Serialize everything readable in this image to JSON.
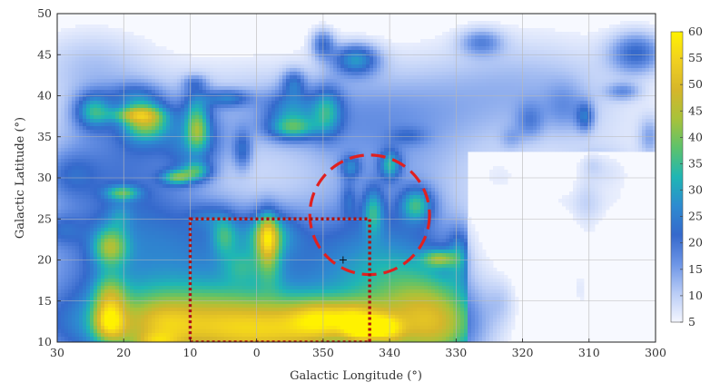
{
  "chart_data": {
    "type": "heatmap",
    "xlabel": "Galactic Longitude (°)",
    "ylabel": "Galactic Latitude (°)",
    "x_ticks": [
      30,
      20,
      10,
      0,
      350,
      340,
      330,
      320,
      310,
      300
    ],
    "y_ticks": [
      10,
      15,
      20,
      25,
      30,
      35,
      40,
      45,
      50
    ],
    "xlim": [
      30,
      300
    ],
    "ylim": [
      10,
      50
    ],
    "grid": true,
    "colorbar": {
      "ticks": [
        5,
        10,
        15,
        20,
        25,
        30,
        35,
        40,
        45,
        50,
        55,
        60
      ],
      "range": [
        5,
        60
      ],
      "colors": [
        "#f4f6ff",
        "#b9ccf6",
        "#6d95e6",
        "#3569cc",
        "#2d8bd0",
        "#1fb6b4",
        "#5cc26c",
        "#a8c23a",
        "#d6b62a",
        "#f0d020",
        "#fff200"
      ]
    },
    "annotations": {
      "dashed_circle": {
        "center_l": 343,
        "center_b": 25.5,
        "radius_deg": 9,
        "color": "#e02020",
        "style": "dashed"
      },
      "dotted_box": {
        "l_min": 343,
        "l_max": 10,
        "b_min": 10,
        "b_max": 25,
        "color": "#b01010",
        "style": "dotted"
      },
      "cross_marker": {
        "l": 347,
        "b": 20
      }
    }
  }
}
